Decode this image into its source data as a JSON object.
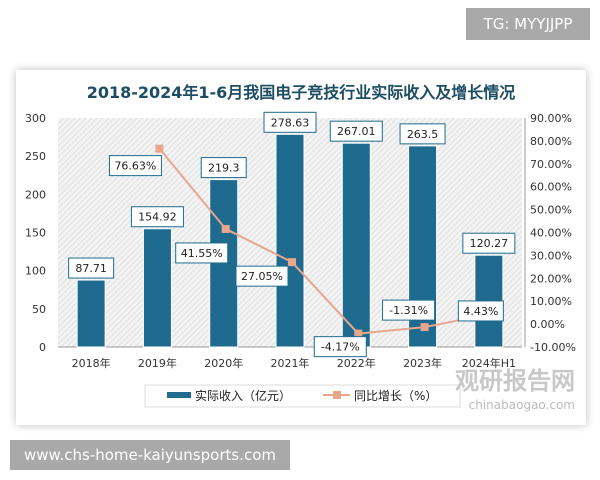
{
  "overlay": {
    "tg": "TG: MYYJJPP",
    "url": "www.chs-home-kaiyunsports.com"
  },
  "watermark": {
    "cn": "观研报告网",
    "en": "chinabaogao.com"
  },
  "chart_data": {
    "type": "bar+line",
    "title": "2018-2024年1-6月我国电子竞技行业实际收入及增长情况",
    "categories": [
      "2018年",
      "2019年",
      "2020年",
      "2021年",
      "2022年",
      "2023年",
      "2024年H1"
    ],
    "series": [
      {
        "name": "实际收入（亿元）",
        "type": "bar",
        "axis": "left",
        "color": "#1f6a8f",
        "values": [
          87.71,
          154.92,
          219.3,
          278.63,
          267.01,
          263.5,
          120.27
        ],
        "labels": [
          "87.71",
          "154.92",
          "219.3",
          "278.63",
          "267.01",
          "263.5",
          "120.27"
        ]
      },
      {
        "name": "同比增长（%）",
        "type": "line",
        "axis": "right",
        "color": "#e8a68e",
        "values": [
          null,
          76.63,
          41.55,
          27.05,
          -4.17,
          -1.31,
          4.43
        ],
        "labels": [
          "",
          "76.63%",
          "41.55%",
          "27.05%",
          "-4.17%",
          "-1.31%",
          "4.43%"
        ]
      }
    ],
    "ylim_left": [
      0,
      300
    ],
    "yticks_left": [
      "0",
      "50",
      "100",
      "150",
      "200",
      "250",
      "300"
    ],
    "ylim_right": [
      -10,
      90
    ],
    "yticks_right": [
      "-10.00%",
      "0.00%",
      "10.00%",
      "20.00%",
      "30.00%",
      "40.00%",
      "50.00%",
      "60.00%",
      "70.00%",
      "80.00%",
      "90.00%"
    ],
    "legend": "bottom"
  }
}
